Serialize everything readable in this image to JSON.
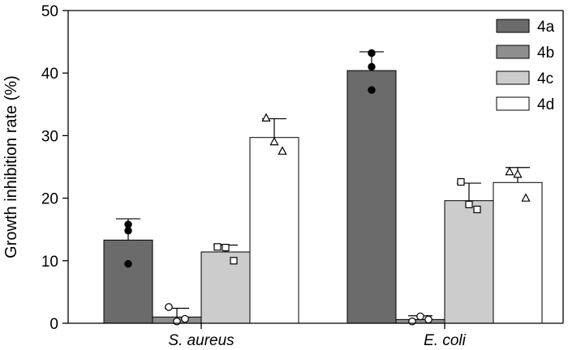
{
  "chart_data": {
    "type": "bar",
    "title": "",
    "xlabel": "",
    "ylabel": "Growth inhibition rate (%)",
    "ylim": [
      0,
      50
    ],
    "yticks": [
      0,
      10,
      20,
      30,
      40,
      50
    ],
    "categories": [
      "S. aureus",
      "E. coli"
    ],
    "legend_position": "top-right",
    "series": [
      {
        "name": "4a",
        "color": "#6b6b6b",
        "marker": "filled-circle",
        "values": [
          13.3,
          40.4
        ],
        "errors": [
          3.4,
          3.0
        ],
        "points": [
          [
            15.8,
            14.8,
            9.5
          ],
          [
            43.2,
            41.0,
            37.3
          ]
        ]
      },
      {
        "name": "4b",
        "color": "#8e8e8e",
        "marker": "open-circle",
        "values": [
          1.0,
          0.6
        ],
        "errors": [
          1.4,
          0.6
        ],
        "points": [
          [
            2.6,
            0.3,
            0.7
          ],
          [
            0.3,
            1.1,
            0.6
          ]
        ]
      },
      {
        "name": "4c",
        "color": "#cccccc",
        "marker": "open-square",
        "values": [
          11.4,
          19.6
        ],
        "errors": [
          1.1,
          2.8
        ],
        "points": [
          [
            12.2,
            12.1,
            10.0
          ],
          [
            22.6,
            19.0,
            18.2
          ]
        ]
      },
      {
        "name": "4d",
        "color": "#ffffff",
        "marker": "open-triangle",
        "values": [
          29.7,
          22.5
        ],
        "errors": [
          3.0,
          2.4
        ],
        "points": [
          [
            32.8,
            29.0,
            27.5
          ],
          [
            24.2,
            23.8,
            20.0
          ]
        ]
      }
    ]
  }
}
